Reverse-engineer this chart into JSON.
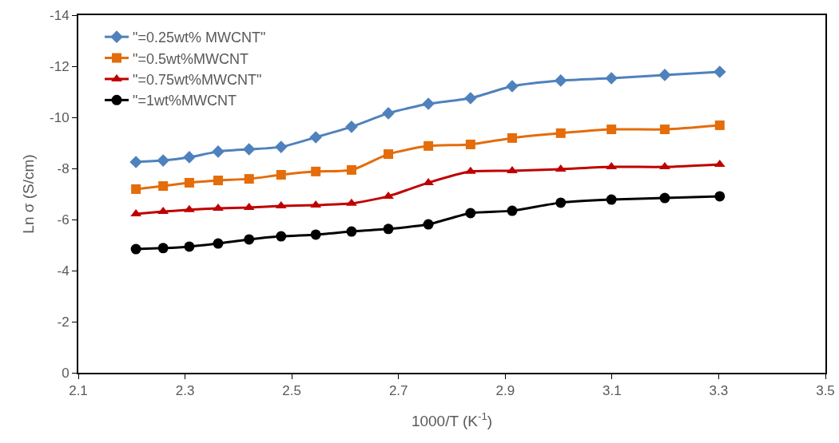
{
  "chart_data": {
    "type": "line",
    "xlabel": "1000/T (K$^{-1}$)",
    "ylabel": "Ln σ (S/cm)",
    "x": [
      2.208,
      2.259,
      2.308,
      2.362,
      2.42,
      2.48,
      2.545,
      2.612,
      2.681,
      2.756,
      2.835,
      2.913,
      3.004,
      3.099,
      3.199,
      3.302
    ],
    "series": [
      {
        "name": "\"=0.25wt% MWCNT\"",
        "color": "#4f81bd",
        "marker": "diamond",
        "values": [
          -8.25,
          -8.31,
          -8.44,
          -8.66,
          -8.75,
          -8.84,
          -9.22,
          -9.63,
          -10.16,
          -10.53,
          -10.75,
          -11.22,
          -11.44,
          -11.53,
          -11.66,
          -11.78
        ]
      },
      {
        "name": "\"=0.5wt%MWCNT",
        "color": "#e46c0a",
        "marker": "square",
        "values": [
          -7.19,
          -7.31,
          -7.44,
          -7.53,
          -7.59,
          -7.75,
          -7.88,
          -7.94,
          -8.56,
          -8.88,
          -8.94,
          -9.19,
          -9.38,
          -9.53,
          -9.53,
          -9.69
        ]
      },
      {
        "name": "\"=0.75wt%MWCNT\"",
        "color": "#c00000",
        "marker": "triangle",
        "values": [
          -6.22,
          -6.31,
          -6.38,
          -6.44,
          -6.47,
          -6.53,
          -6.56,
          -6.63,
          -6.91,
          -7.44,
          -7.88,
          -7.91,
          -7.97,
          -8.06,
          -8.06,
          -8.16
        ]
      },
      {
        "name": "\"=1wt%MWCNT",
        "color": "#000000",
        "marker": "circle",
        "values": [
          -4.84,
          -4.88,
          -4.94,
          -5.06,
          -5.22,
          -5.34,
          -5.41,
          -5.53,
          -5.63,
          -5.81,
          -6.25,
          -6.34,
          -6.66,
          -6.78,
          -6.84,
          -6.91
        ]
      }
    ],
    "xlim": [
      2.1,
      3.5
    ],
    "xticks": [
      2.1,
      2.3,
      2.5,
      2.7,
      2.9,
      3.1,
      3.3,
      3.5
    ],
    "ylim": [
      0,
      -14
    ],
    "yticks": [
      0,
      -2,
      -4,
      -6,
      -8,
      -10,
      -12,
      -14
    ],
    "grid": false,
    "legend": "top left",
    "line_style": "solid"
  }
}
